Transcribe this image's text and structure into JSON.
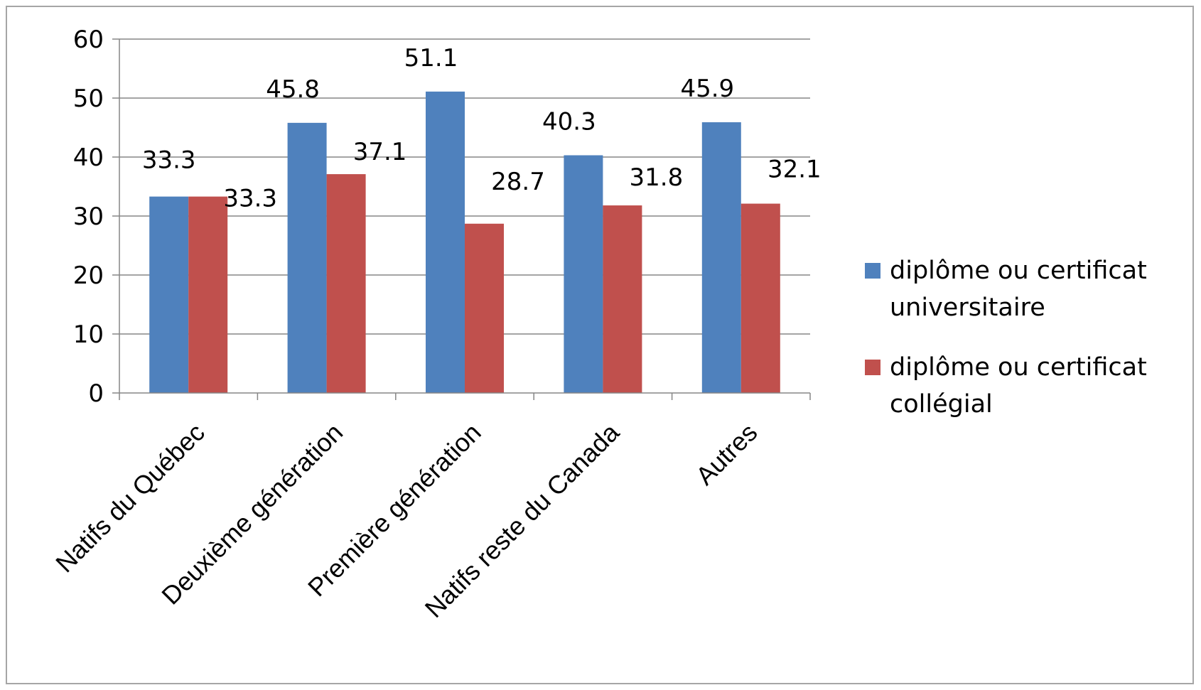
{
  "chart_data": {
    "type": "bar",
    "title": "",
    "xlabel": "",
    "ylabel": "",
    "categories": [
      "Natifs du Québec",
      "Deuxième génération",
      "Première génération",
      "Natifs reste du Canada",
      "Autres"
    ],
    "series": [
      {
        "name": "diplôme ou certificat universitaire",
        "legend_lines": [
          "diplôme ou certificat",
          "universitaire"
        ],
        "color": "#4F81BD",
        "values": [
          33.3,
          45.8,
          51.1,
          40.3,
          45.9
        ],
        "labels": [
          "33.3",
          "45.8",
          "51.1",
          "40.3",
          "45.9"
        ]
      },
      {
        "name": "diplôme ou certificat collégial",
        "legend_lines": [
          "diplôme ou certificat",
          "collégial"
        ],
        "color": "#C0504D",
        "values": [
          33.3,
          37.1,
          28.7,
          31.8,
          32.1
        ],
        "labels": [
          "33.3",
          "37.1",
          "28.7",
          "31.8",
          "32.1"
        ]
      }
    ],
    "ylim": [
      0,
      60
    ],
    "yticks": [
      0,
      10,
      20,
      30,
      40,
      50,
      60
    ],
    "grid": true,
    "legend_position": "right",
    "gridline_color": "#868686",
    "axis_color": "#868686"
  }
}
